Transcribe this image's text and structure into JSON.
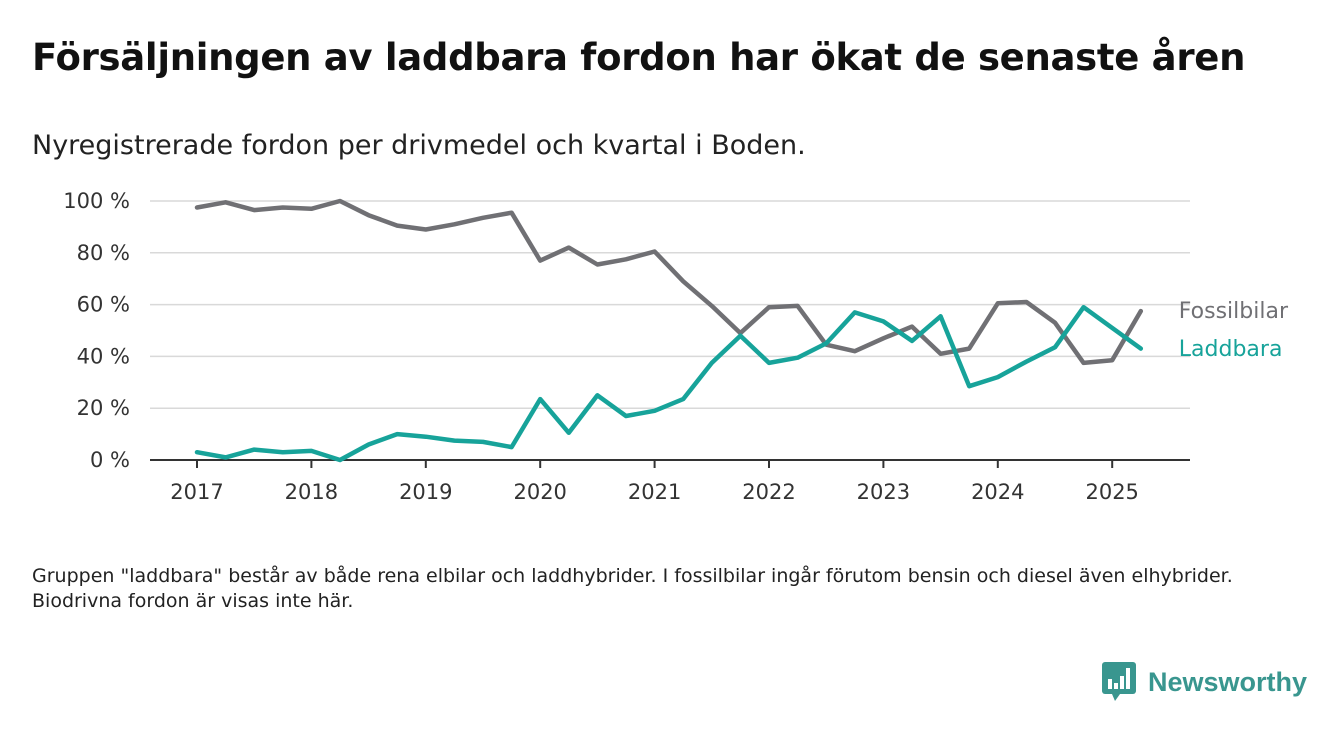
{
  "title": "Försäljningen av laddbara fordon har ökat de senaste åren",
  "subtitle": "Nyregistrerade fordon per drivmedel och kvartal i Boden.",
  "note": "Gruppen \"laddbara\" består av både rena elbilar och laddhybrider. I fossilbilar ingår förutom bensin och diesel även elhybrider. Biodrivna fordon är visas inte här.",
  "logo": {
    "text": "Newsworthy",
    "icon": "newsworthy-chart-icon",
    "color": "#39968f"
  },
  "chart_data": {
    "type": "line",
    "title": "",
    "xlabel": "",
    "ylabel": "",
    "x": [
      "2017 Q1",
      "2017 Q2",
      "2017 Q3",
      "2017 Q4",
      "2018 Q1",
      "2018 Q2",
      "2018 Q3",
      "2018 Q4",
      "2019 Q1",
      "2019 Q2",
      "2019 Q3",
      "2019 Q4",
      "2020 Q1",
      "2020 Q2",
      "2020 Q3",
      "2020 Q4",
      "2021 Q1",
      "2021 Q2",
      "2021 Q3",
      "2021 Q4",
      "2022 Q1",
      "2022 Q2",
      "2022 Q3",
      "2022 Q4",
      "2023 Q1",
      "2023 Q2",
      "2023 Q3",
      "2023 Q4",
      "2024 Q1",
      "2024 Q2",
      "2024 Q3",
      "2024 Q4",
      "2025 Q1",
      "2025 Q2"
    ],
    "x_ticks": [
      "2017",
      "2018",
      "2019",
      "2020",
      "2021",
      "2022",
      "2023",
      "2024",
      "2025"
    ],
    "y_ticks": [
      "0 %",
      "20 %",
      "40 %",
      "60 %",
      "80 %",
      "100 %"
    ],
    "ylim": [
      0,
      100
    ],
    "grid": true,
    "series": [
      {
        "name": "Fossilbilar",
        "color": "#707074",
        "values": [
          97.5,
          99.5,
          96.5,
          97.5,
          97,
          100,
          94.5,
          90.5,
          89,
          91,
          93.5,
          95.5,
          77,
          82,
          75.5,
          77.5,
          80.5,
          69,
          59.5,
          49,
          59,
          59.5,
          44.5,
          42,
          47,
          51.5,
          41,
          43,
          60.5,
          61,
          53,
          37.5,
          38.5,
          57.5
        ]
      },
      {
        "name": "Laddbara",
        "color": "#17a39a",
        "values": [
          3,
          1,
          4,
          3,
          3.5,
          0,
          6,
          10,
          9,
          7.5,
          7,
          5,
          23.5,
          10.5,
          25,
          17,
          19,
          23.5,
          37.5,
          48,
          37.5,
          39.5,
          45,
          57,
          53.5,
          46,
          55.5,
          28.5,
          32,
          38,
          43.5,
          59,
          51,
          43
        ]
      }
    ]
  }
}
